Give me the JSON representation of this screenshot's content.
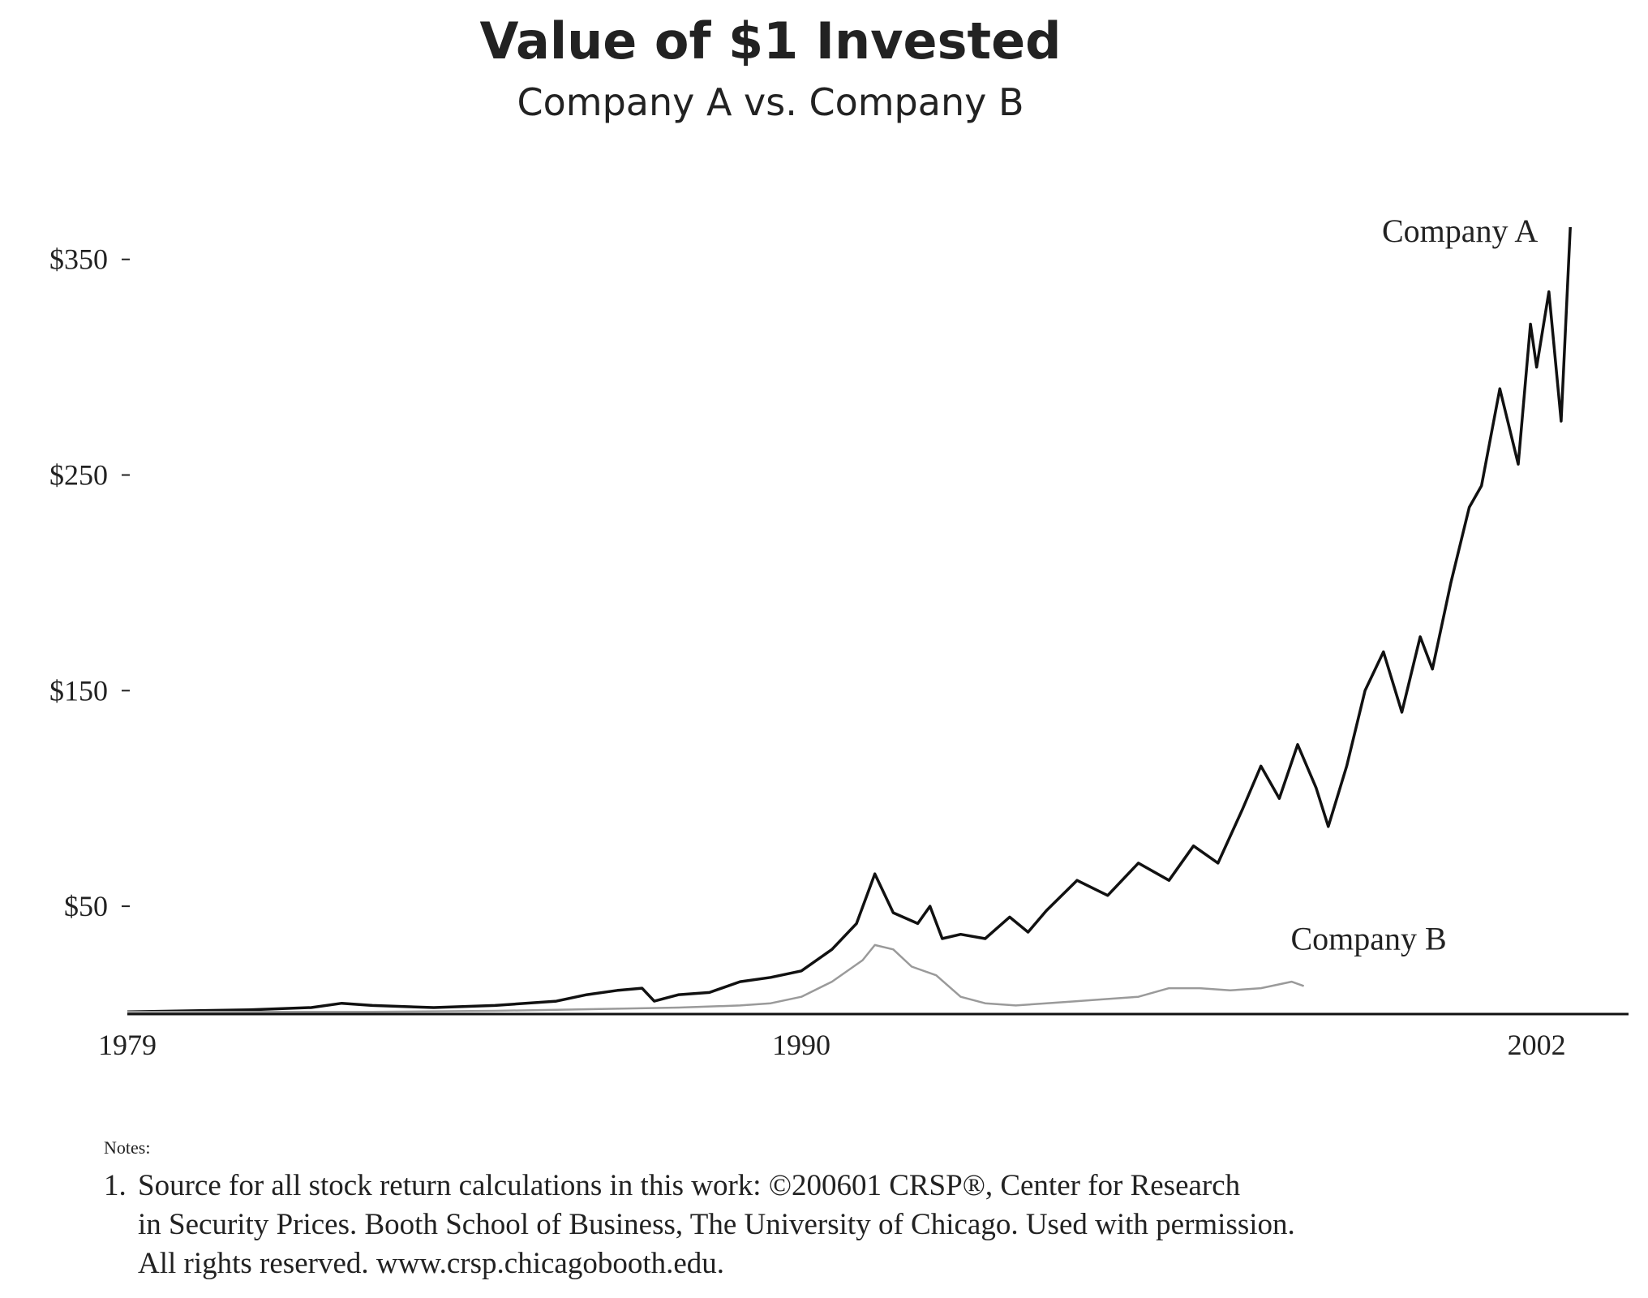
{
  "chart_data": {
    "type": "line",
    "title": "Value of $1 Invested",
    "subtitle": "Company A vs. Company B",
    "xlabel": "",
    "ylabel": "",
    "xlim": [
      1979,
      2003.5
    ],
    "ylim": [
      0,
      380
    ],
    "x_ticks": [
      1979,
      1990,
      2002
    ],
    "x_tick_labels": [
      "1979",
      "1990",
      "2002"
    ],
    "y_ticks": [
      50,
      150,
      250,
      350
    ],
    "y_tick_labels": [
      "$50",
      "$150",
      "$250",
      "$350"
    ],
    "grid": false,
    "series": [
      {
        "name": "Company A",
        "color": "#111111",
        "x": [
          1979,
          1980,
          1981,
          1982,
          1982.5,
          1983,
          1984,
          1985,
          1986,
          1986.5,
          1987,
          1987.4,
          1987.6,
          1988,
          1988.5,
          1989,
          1989.5,
          1990,
          1990.5,
          1990.9,
          1991.2,
          1991.5,
          1991.9,
          1992.1,
          1992.3,
          1992.6,
          1993,
          1993.4,
          1993.7,
          1994,
          1994.5,
          1995,
          1995.5,
          1996,
          1996.4,
          1996.8,
          1997.2,
          1997.5,
          1997.8,
          1998.1,
          1998.4,
          1998.6,
          1998.9,
          1999.2,
          1999.5,
          1999.8,
          2000.1,
          2000.3,
          2000.6,
          2000.9,
          2001.1,
          2001.4,
          2001.7,
          2001.9,
          2002,
          2002.2,
          2002.4,
          2002.55
        ],
        "values": [
          1,
          1.5,
          2,
          3,
          5,
          4,
          3,
          4,
          6,
          9,
          11,
          12,
          6,
          9,
          10,
          15,
          17,
          20,
          30,
          42,
          65,
          47,
          42,
          50,
          35,
          37,
          35,
          45,
          38,
          48,
          62,
          55,
          70,
          62,
          78,
          70,
          95,
          115,
          100,
          125,
          105,
          87,
          115,
          150,
          168,
          140,
          175,
          160,
          200,
          235,
          245,
          290,
          255,
          320,
          300,
          335,
          275,
          365
        ]
      },
      {
        "name": "Company B",
        "color": "#9a9a9a",
        "x": [
          1979,
          1981,
          1983,
          1985,
          1986,
          1987,
          1988,
          1989,
          1989.5,
          1990,
          1990.5,
          1991,
          1991.2,
          1991.5,
          1991.8,
          1992.2,
          1992.6,
          1993,
          1993.5,
          1994,
          1994.5,
          1995,
          1995.5,
          1996,
          1996.5,
          1997,
          1997.5,
          1998,
          1998.2
        ],
        "values": [
          1,
          1,
          1,
          1.5,
          2,
          2.5,
          3,
          4,
          5,
          8,
          15,
          25,
          32,
          30,
          22,
          18,
          8,
          5,
          4,
          5,
          6,
          7,
          8,
          12,
          12,
          11,
          12,
          15,
          13
        ]
      }
    ]
  },
  "notes": {
    "heading": "Notes:",
    "number": "1.",
    "line1": "Source for all stock return calculations in this work: ©200601 CRSP®, Center for Research",
    "line2": "in Security Prices. Booth School of Business, The University of Chicago. Used with permission.",
    "line3": "All rights reserved. www.crsp.chicagobooth.edu."
  }
}
